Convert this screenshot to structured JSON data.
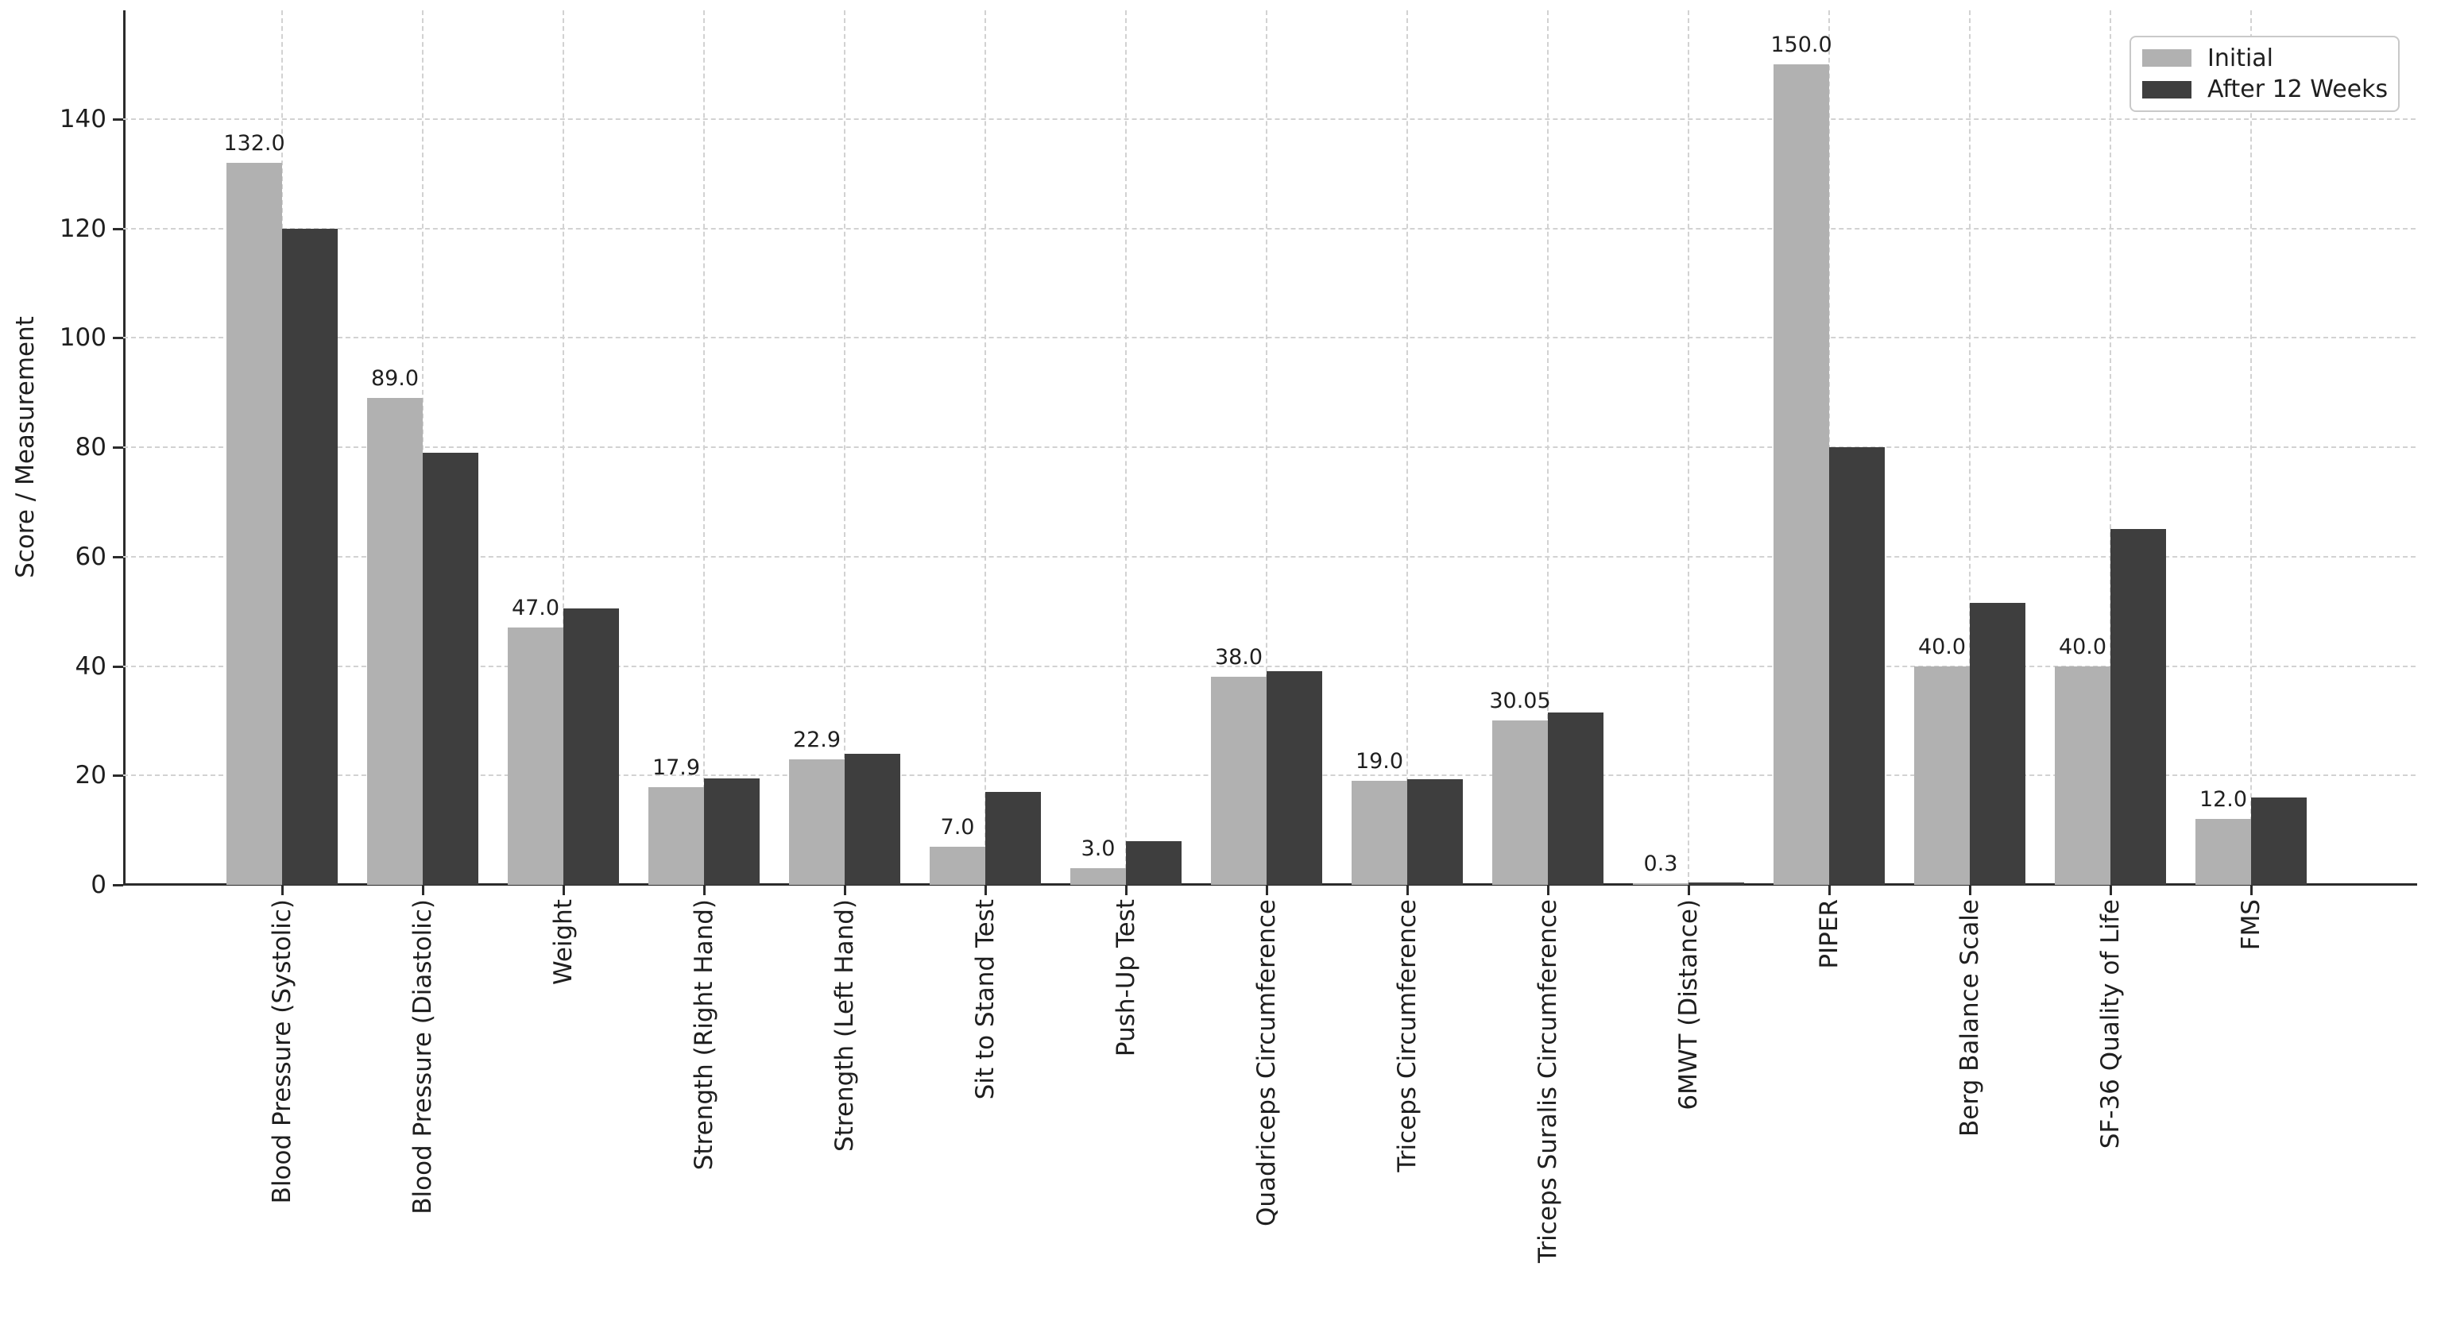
{
  "chart_data": {
    "type": "bar",
    "title": "",
    "xlabel": "",
    "ylabel": "Score / Measurement",
    "categories": [
      "Blood Pressure (Systolic)",
      "Blood Pressure (Diastolic)",
      "Weight",
      "Strength (Right Hand)",
      "Strength (Left Hand)",
      "Sit to Stand Test",
      "Push-Up Test",
      "Quadriceps Circumference",
      "Triceps Circumference",
      "Triceps Suralis Circumference",
      "6MWT (Distance)",
      "PIPER",
      "Berg Balance Scale",
      "SF-36 Quality of Life",
      "FMS"
    ],
    "series": [
      {
        "name": "Initial",
        "color": "#b1b1b1",
        "values": [
          132.0,
          89.0,
          47.0,
          17.9,
          22.9,
          7.0,
          3.0,
          38.0,
          19.0,
          30.05,
          0.3,
          150.0,
          40.0,
          40.0,
          12.0
        ],
        "value_labels": [
          "132.0",
          "89.0",
          "47.0",
          "17.9",
          "22.9",
          "7.0",
          "3.0",
          "38.0",
          "19.0",
          "30.05",
          "0.3",
          "150.0",
          "40.0",
          "40.0",
          "12.0"
        ]
      },
      {
        "name": "After 12 Weeks",
        "color": "#3e3e3e",
        "values": [
          120.0,
          79.0,
          50.5,
          19.5,
          24.0,
          17.0,
          8.0,
          39.0,
          19.3,
          31.5,
          0.5,
          80.0,
          51.5,
          65.0,
          16.0
        ]
      }
    ],
    "yticks": [
      0,
      20,
      40,
      60,
      80,
      100,
      120,
      140
    ],
    "ylim": [
      0,
      160
    ],
    "grid": true,
    "grid_style": "dashed",
    "legend_position": "upper right",
    "colors": {
      "background": "#ffffff",
      "gridline": "#d2d2d2",
      "axis": "#2b2b2b",
      "text": "#1f1f1f"
    }
  }
}
